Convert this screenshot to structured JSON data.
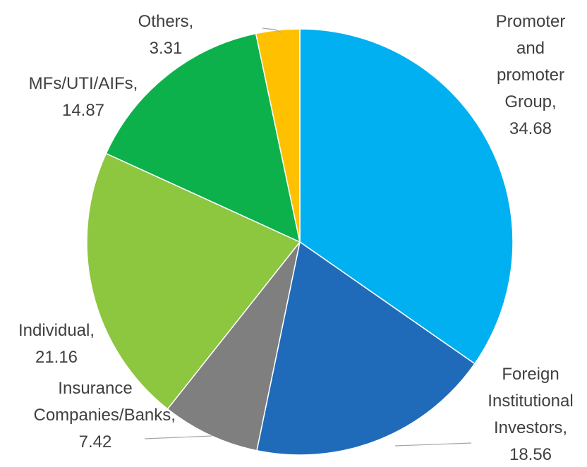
{
  "chart_data": {
    "type": "pie",
    "categories": [
      "Promoter and promoter Group,",
      "Foreign Institutional Investors,",
      "Insurance Companies/Banks,",
      "Individual,",
      "MFs/UTI/AIFs,",
      "Others,"
    ],
    "values": [
      34.68,
      18.56,
      7.42,
      21.16,
      14.87,
      3.31
    ],
    "colors": [
      "#00b0f0",
      "#1f6bb9",
      "#7f7f7f",
      "#8dc63f",
      "#0db14b",
      "#ffc000"
    ]
  }
}
